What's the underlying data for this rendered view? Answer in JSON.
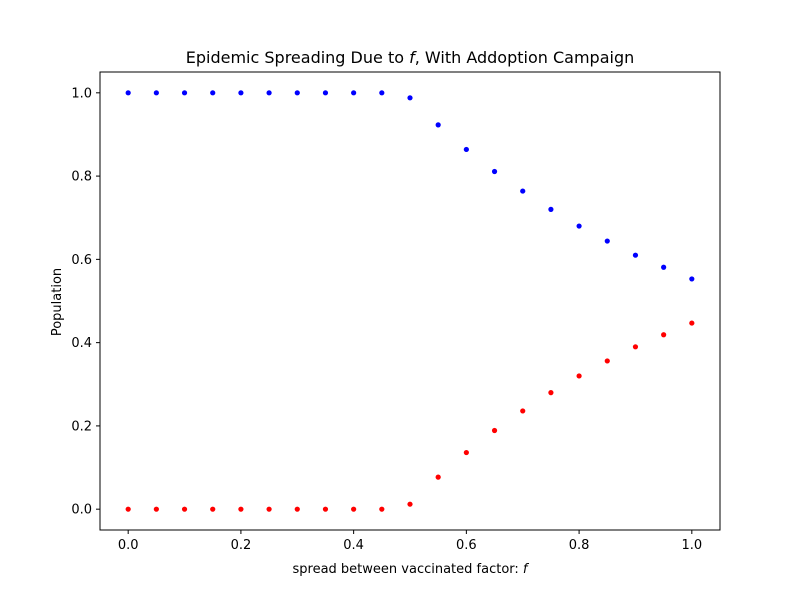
{
  "chart_data": {
    "type": "scatter",
    "title_main": "Epidemic Spreading Due to ",
    "title_var": "f",
    "title_rest": ", With Addoption Campaign",
    "xlabel_main": "spread between vaccinated factor: ",
    "xlabel_var": "f",
    "ylabel": "Population",
    "xlim": [
      -0.05,
      1.05
    ],
    "ylim": [
      -0.05,
      1.05
    ],
    "xticks": [
      0.0,
      0.2,
      0.4,
      0.6,
      0.8,
      1.0
    ],
    "xtick_labels": [
      "0.0",
      "0.2",
      "0.4",
      "0.6",
      "0.8",
      "1.0"
    ],
    "yticks": [
      0.0,
      0.2,
      0.4,
      0.6,
      0.8,
      1.0
    ],
    "ytick_labels": [
      "0.0",
      "0.2",
      "0.4",
      "0.6",
      "0.8",
      "1.0"
    ],
    "grid": false,
    "x": [
      0.0,
      0.05,
      0.1,
      0.15,
      0.2,
      0.25,
      0.3,
      0.35,
      0.4,
      0.45,
      0.5,
      0.55,
      0.6,
      0.65,
      0.7,
      0.75,
      0.8,
      0.85,
      0.9,
      0.95,
      1.0
    ],
    "series": [
      {
        "color": "#0000ff",
        "values": [
          1.0,
          1.0,
          1.0,
          1.0,
          1.0,
          1.0,
          1.0,
          1.0,
          1.0,
          1.0,
          0.988,
          0.923,
          0.864,
          0.811,
          0.764,
          0.72,
          0.68,
          0.644,
          0.61,
          0.581,
          0.553
        ]
      },
      {
        "color": "#ff0000",
        "values": [
          0.0,
          0.0,
          0.0,
          0.0,
          0.0,
          0.0,
          0.0,
          0.0,
          0.0,
          0.0,
          0.012,
          0.077,
          0.136,
          0.189,
          0.236,
          0.28,
          0.32,
          0.356,
          0.39,
          0.419,
          0.447
        ]
      }
    ]
  }
}
